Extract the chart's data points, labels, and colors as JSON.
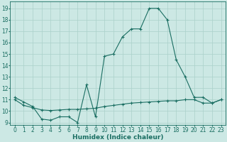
{
  "xlabel": "Humidex (Indice chaleur)",
  "bg_color": "#cce8e4",
  "line_color": "#1a6e62",
  "grid_color": "#aad0ca",
  "xlim": [
    -0.5,
    23.5
  ],
  "ylim": [
    8.8,
    19.6
  ],
  "yticks": [
    9,
    10,
    11,
    12,
    13,
    14,
    15,
    16,
    17,
    18,
    19
  ],
  "xticks": [
    0,
    1,
    2,
    3,
    4,
    5,
    6,
    7,
    8,
    9,
    10,
    11,
    12,
    13,
    14,
    15,
    16,
    17,
    18,
    19,
    20,
    21,
    22,
    23
  ],
  "line1_x": [
    0,
    1,
    2,
    3,
    4,
    5,
    6,
    7,
    8,
    9,
    10,
    11,
    12,
    13,
    14,
    15,
    16,
    17,
    18,
    19,
    20,
    21,
    22,
    23
  ],
  "line1_y": [
    11.2,
    10.8,
    10.4,
    9.3,
    9.2,
    9.5,
    9.5,
    9.0,
    12.3,
    9.5,
    14.8,
    15.0,
    16.5,
    17.2,
    17.2,
    19.0,
    19.0,
    18.0,
    14.5,
    13.0,
    11.2,
    11.2,
    10.7,
    11.0
  ],
  "line2_x": [
    0,
    1,
    2,
    3,
    4,
    5,
    6,
    7,
    8,
    9,
    10,
    11,
    12,
    13,
    14,
    15,
    16,
    17,
    18,
    19,
    20,
    21,
    22,
    23
  ],
  "line2_y": [
    11.0,
    10.5,
    10.3,
    10.1,
    10.05,
    10.1,
    10.15,
    10.15,
    10.2,
    10.25,
    10.4,
    10.5,
    10.6,
    10.7,
    10.75,
    10.8,
    10.85,
    10.9,
    10.9,
    11.0,
    11.0,
    10.7,
    10.7,
    11.0
  ],
  "marker": "+",
  "markersize": 3.0,
  "linewidth": 0.8,
  "xlabel_fontsize": 6.5,
  "tick_fontsize": 5.5
}
